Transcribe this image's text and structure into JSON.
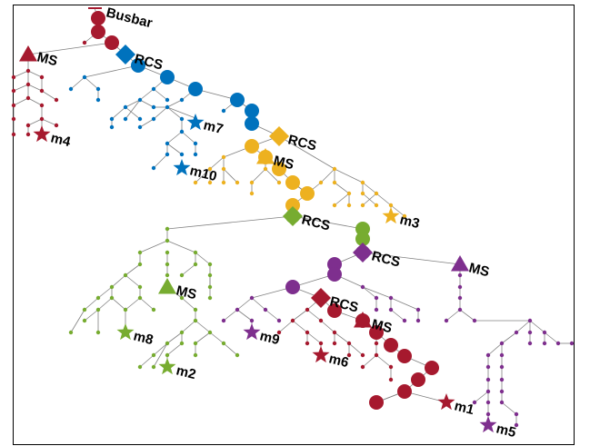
{
  "colors": {
    "red": "#a6192e",
    "blue": "#0072bd",
    "yellow": "#edb120",
    "green": "#77ac30",
    "purple": "#7e2f8e",
    "edge": "#808080",
    "frame": "#000000"
  },
  "labels": {
    "busbar": "Busbar",
    "ms_red": "MS",
    "m4": "m4",
    "rcs_blue": "RCS",
    "m7": "m7",
    "m10": "m10",
    "rcs_yellow": "RCS",
    "ms_yellow": "MS",
    "m3": "m3",
    "rcs_green": "RCS",
    "ms_green": "MS",
    "m8": "m8",
    "m2": "m2",
    "rcs_purple": "RCS",
    "ms_purple": "MS",
    "m5": "m5",
    "m9": "m9",
    "rcs_red": "RCS",
    "ms_red2": "MS",
    "m6": "m6",
    "m1": "m1"
  },
  "legend_symbols": {
    "circle": "bus node",
    "diamond": "RCS",
    "triangle": "MS",
    "star": "load"
  }
}
